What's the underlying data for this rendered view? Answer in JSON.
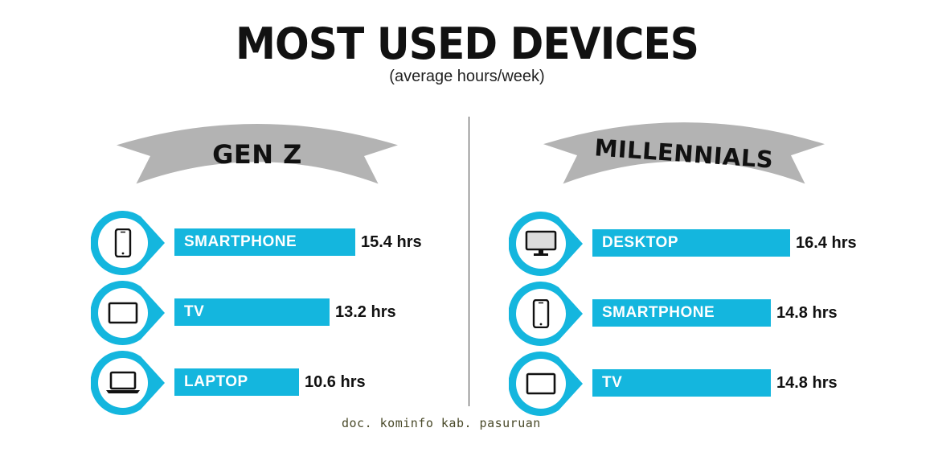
{
  "title": "MOST USED DEVICES",
  "subtitle": "(average hours/week)",
  "watermark": "doc. kominfo kab. pasuruan",
  "colors": {
    "bar": "#14b6de",
    "banner": "#b3b3b3",
    "text": "#111111"
  },
  "chart_data": [
    {
      "type": "bar",
      "title": "GEN Z",
      "unit": "hrs",
      "categories": [
        "SMARTPHONE",
        "TV",
        "LAPTOP"
      ],
      "values": [
        15.4,
        13.2,
        10.6
      ],
      "value_labels": [
        "15.4 hrs",
        "13.2 hrs",
        "10.6 hrs"
      ],
      "icons": [
        "smartphone-icon",
        "tv-icon",
        "laptop-icon"
      ]
    },
    {
      "type": "bar",
      "title": "MILLENNIALS",
      "unit": "hrs",
      "categories": [
        "DESKTOP",
        "SMARTPHONE",
        "TV"
      ],
      "values": [
        16.4,
        14.8,
        14.8
      ],
      "value_labels": [
        "16.4 hrs",
        "14.8 hrs",
        "14.8 hrs"
      ],
      "icons": [
        "desktop-icon",
        "smartphone-icon",
        "tv-icon"
      ]
    }
  ]
}
